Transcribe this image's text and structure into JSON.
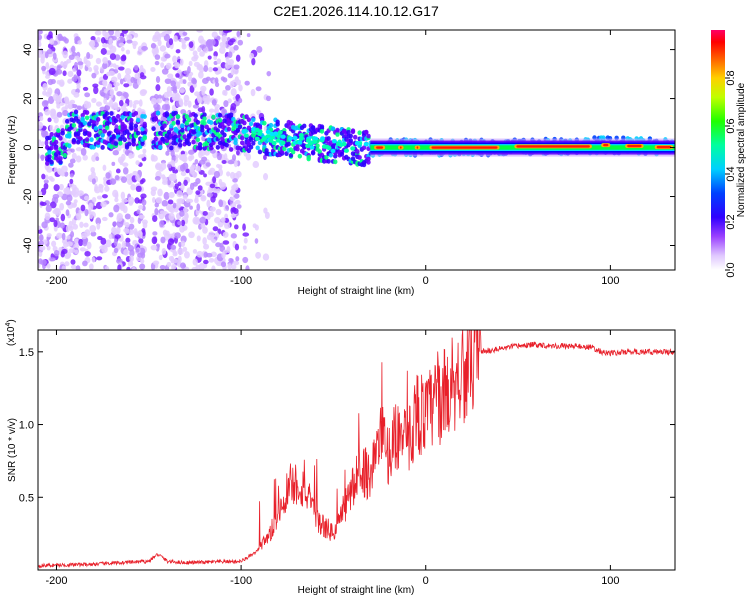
{
  "figure_title": "C2E1.2026.114.10.12.G17",
  "chart_data": [
    {
      "type": "heatmap",
      "title": "C2E1.2026.114.10.12.G17",
      "xlabel": "Height of straight line (km)",
      "ylabel": "Frequency (Hz)",
      "xlim": [
        -210,
        135
      ],
      "ylim": [
        -50,
        48
      ],
      "xticks": [
        -200,
        -100,
        0,
        100
      ],
      "yticks": [
        -40,
        -20,
        0,
        20,
        40
      ],
      "tone_frequency_track": [
        {
          "x": -195,
          "y": 8
        },
        {
          "x": -180,
          "y": 7
        },
        {
          "x": -150,
          "y": 7
        },
        {
          "x": -130,
          "y": 7
        },
        {
          "x": -100,
          "y": 6
        },
        {
          "x": -80,
          "y": 4
        },
        {
          "x": -60,
          "y": 2
        },
        {
          "x": -40,
          "y": 0
        },
        {
          "x": -30,
          "y": 0
        },
        {
          "x": 0,
          "y": 0
        },
        {
          "x": 50,
          "y": 0
        },
        {
          "x": 90,
          "y": 1
        },
        {
          "x": 100,
          "y": 1
        },
        {
          "x": 135,
          "y": 0
        }
      ],
      "colorbar": {
        "label": "Normalized spectral amplitude",
        "range": [
          0,
          1
        ],
        "ticks": [
          "0.0",
          "0.2",
          "0.4",
          "0.6",
          "0.8"
        ],
        "colors": [
          "#ffffff",
          "#c8a0ff",
          "#7a00ff",
          "#0000ff",
          "#00e5ff",
          "#00ff40",
          "#ffff00",
          "#ff8000",
          "#ff0000",
          "#ff0066"
        ]
      }
    },
    {
      "type": "line",
      "xlabel": "Height of straight line (km)",
      "ylabel": "SNR (10 * v/v)",
      "scale_label": "(x10",
      "scale_exponent": "4",
      "xlim": [
        -210,
        135
      ],
      "ylim": [
        0,
        16500
      ],
      "xticks": [
        -200,
        -100,
        0,
        100
      ],
      "yticks": [
        {
          "value": 5000,
          "label": "0.5"
        },
        {
          "value": 10000,
          "label": "1.0"
        },
        {
          "value": 15000,
          "label": "1.5"
        }
      ],
      "color": "#e8202a",
      "series": [
        {
          "name": "SNR",
          "x": [
            -210,
            -180,
            -150,
            -145,
            -140,
            -130,
            -100,
            -92,
            -85,
            -80,
            -75,
            -70,
            -65,
            -60,
            -55,
            -50,
            -45,
            -40,
            -35,
            -30,
            -25,
            -20,
            -15,
            -10,
            -5,
            0,
            5,
            10,
            15,
            20,
            25,
            30,
            40,
            50,
            60,
            70,
            80,
            90,
            95,
            100,
            110,
            120,
            135
          ],
          "y": [
            300,
            400,
            600,
            1100,
            600,
            500,
            600,
            1200,
            2200,
            3800,
            5500,
            6000,
            5500,
            3500,
            3000,
            2500,
            4000,
            5500,
            7000,
            6500,
            9000,
            8000,
            9500,
            8500,
            11000,
            10500,
            11500,
            12000,
            13000,
            13800,
            14500,
            15000,
            15200,
            15400,
            15500,
            15400,
            15400,
            15300,
            15000,
            14900,
            15000,
            15000,
            15000
          ]
        }
      ]
    }
  ]
}
